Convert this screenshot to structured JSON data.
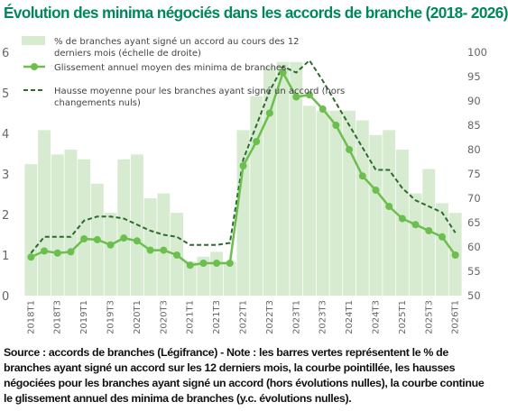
{
  "title": "Évolution des minima négociés dans les accords de branche (2018- 2026)",
  "source_text": "Source : accords de branches (Légifrance) - Note : les barres vertes représentent le % de branches ayant signé un accord sur les 12 derniers mois, la courbe pointillée, les hausses négociées pour les branches ayant signé un accord (hors évolutions nulles), la courbe continue le glissement annuel des minima de branches (y.c. évolutions nulles).",
  "colors": {
    "bars": "#d6ebcf",
    "line_solid": "#6cbf4f",
    "line_dashed": "#2d6a2d",
    "title": "#00885a",
    "tick": "#666666"
  },
  "chart_data": {
    "type": "bar+line",
    "y_left_range": [
      0,
      6
    ],
    "y_left_ticks": [
      "0",
      "1",
      "2",
      "3",
      "4",
      "5",
      "6"
    ],
    "y_right_range": [
      50,
      100
    ],
    "y_right_ticks": [
      "50",
      "55",
      "60",
      "65",
      "70",
      "75",
      "80",
      "85",
      "90",
      "95",
      "100"
    ],
    "x_tick_labels": [
      "2018T1",
      "2018T3",
      "2019T1",
      "2019T3",
      "2020T1",
      "2020T3",
      "2021T1",
      "2021T3",
      "2022T1",
      "2022T3",
      "2023T1",
      "2023T3",
      "2024T1",
      "2024T3",
      "2025T1",
      "2025T3",
      "2026T1"
    ],
    "periods": [
      "2018T1",
      "2018T2",
      "2018T3",
      "2018T4",
      "2019T1",
      "2019T2",
      "2019T3",
      "2019T4",
      "2020T1",
      "2020T2",
      "2020T3",
      "2020T4",
      "2021T1",
      "2021T2",
      "2021T3",
      "2021T4",
      "2022T1",
      "2022T2",
      "2022T3",
      "2022T4",
      "2023T1",
      "2023T2",
      "2023T3",
      "2023T4",
      "2024T1",
      "2024T2",
      "2024T3",
      "2024T4",
      "2025T1",
      "2025T2",
      "2025T3",
      "2025T4",
      "2026T1"
    ],
    "grid": false,
    "legend_position": "top-left",
    "series": [
      {
        "name": "% de branches ayant signé un accord au cours des 12 derniers mois (échelle de droite)",
        "type": "bar",
        "axis": "right",
        "values": [
          77,
          84,
          79,
          80,
          78,
          73,
          67,
          78,
          79,
          70,
          71,
          67,
          57,
          58,
          59,
          57,
          84,
          91,
          97,
          98,
          98,
          89,
          88,
          88,
          88,
          86,
          83,
          84,
          80,
          71,
          76,
          69,
          67
        ]
      },
      {
        "name": "Glissement annuel moyen des minima de branches",
        "type": "line",
        "style": "solid",
        "axis": "left",
        "values": [
          0.95,
          1.1,
          1.05,
          1.08,
          1.4,
          1.38,
          1.25,
          1.42,
          1.35,
          1.12,
          1.12,
          1.0,
          0.75,
          0.8,
          0.8,
          0.8,
          3.2,
          3.8,
          4.5,
          5.5,
          4.9,
          4.95,
          4.6,
          4.2,
          3.6,
          2.95,
          2.6,
          2.2,
          1.9,
          1.75,
          1.6,
          1.45,
          1.0
        ]
      },
      {
        "name": "Hausse moyenne pour les branches ayant signé un accord (hors changements nuls)",
        "type": "line",
        "style": "dashed",
        "axis": "left",
        "values": [
          1.05,
          1.45,
          1.45,
          1.45,
          1.85,
          1.95,
          1.95,
          1.9,
          1.75,
          1.6,
          1.5,
          1.45,
          1.25,
          1.25,
          1.25,
          1.3,
          3.35,
          4.2,
          5.05,
          5.65,
          5.5,
          5.8,
          5.3,
          4.75,
          4.2,
          3.65,
          3.1,
          3.1,
          2.65,
          2.35,
          2.2,
          2.05,
          1.55
        ]
      }
    ]
  }
}
